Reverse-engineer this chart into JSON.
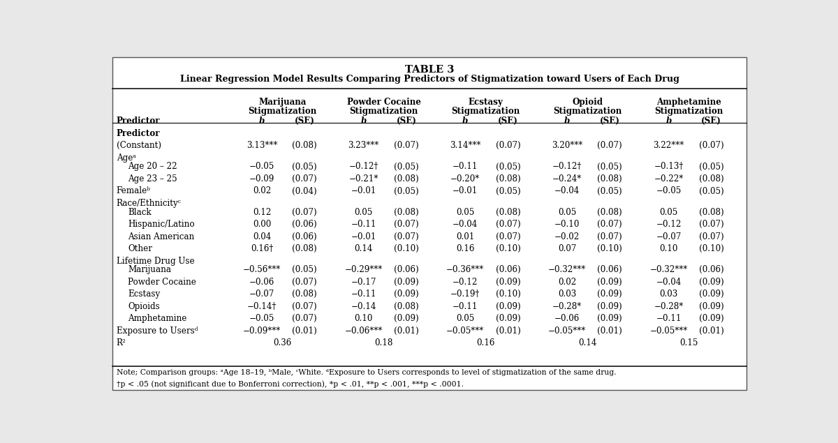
{
  "title_line1": "TABLE 3",
  "title_line2": "Linear Regression Model Results Comparing Predictors of Stigmatization toward Users of Each Drug",
  "col_headers": [
    [
      "Marijuana",
      "Stigmatization"
    ],
    [
      "Powder Cocaine",
      "Stigmatization"
    ],
    [
      "Ecstasy",
      "Stigmatization"
    ],
    [
      "Opioid",
      "Stigmatization"
    ],
    [
      "Amphetamine",
      "Stigmatization"
    ]
  ],
  "rows": [
    {
      "label": "Predictor",
      "indent": 0,
      "bold": true,
      "header": true,
      "vals": [
        "b",
        "(SE)",
        "b",
        "(SE)",
        "b",
        "(SE)",
        "b",
        "(SE)",
        "b",
        "(SE)"
      ]
    },
    {
      "label": "(Constant)",
      "indent": 0,
      "bold": false,
      "header": false,
      "vals": [
        "3.13***",
        "(0.08)",
        "3.23***",
        "(0.07)",
        "3.14***",
        "(0.07)",
        "3.20***",
        "(0.07)",
        "3.22***",
        "(0.07)"
      ]
    },
    {
      "label": "Ageᵃ",
      "indent": 0,
      "bold": false,
      "header": false,
      "section": true,
      "vals": [
        "",
        "",
        "",
        "",
        "",
        "",
        "",
        "",
        "",
        ""
      ]
    },
    {
      "label": "Age 20 – 22",
      "indent": 1,
      "bold": false,
      "header": false,
      "vals": [
        "−0.05",
        "(0.05)",
        "−0.12†",
        "(0.05)",
        "−0.11",
        "(0.05)",
        "−0.12†",
        "(0.05)",
        "−0.13†",
        "(0.05)"
      ]
    },
    {
      "label": "Age 23 – 25",
      "indent": 1,
      "bold": false,
      "header": false,
      "vals": [
        "−0.09",
        "(0.07)",
        "−0.21*",
        "(0.08)",
        "−0.20*",
        "(0.08)",
        "−0.24*",
        "(0.08)",
        "−0.22*",
        "(0.08)"
      ]
    },
    {
      "label": "Femaleᵇ",
      "indent": 0,
      "bold": false,
      "header": false,
      "vals": [
        "0.02",
        "(0.04)",
        "−0.01",
        "(0.05)",
        "−0.01",
        "(0.05)",
        "−0.04",
        "(0.05)",
        "−0.05",
        "(0.05)"
      ]
    },
    {
      "label": "Race/Ethnicityᶜ",
      "indent": 0,
      "bold": false,
      "header": false,
      "section": true,
      "vals": [
        "",
        "",
        "",
        "",
        "",
        "",
        "",
        "",
        "",
        ""
      ]
    },
    {
      "label": "Black",
      "indent": 1,
      "bold": false,
      "header": false,
      "vals": [
        "0.12",
        "(0.07)",
        "0.05",
        "(0.08)",
        "0.05",
        "(0.08)",
        "0.05",
        "(0.08)",
        "0.05",
        "(0.08)"
      ]
    },
    {
      "label": "Hispanic/Latino",
      "indent": 1,
      "bold": false,
      "header": false,
      "vals": [
        "0.00",
        "(0.06)",
        "−0.11",
        "(0.07)",
        "−0.04",
        "(0.07)",
        "−0.10",
        "(0.07)",
        "−0.12",
        "(0.07)"
      ]
    },
    {
      "label": "Asian American",
      "indent": 1,
      "bold": false,
      "header": false,
      "vals": [
        "0.04",
        "(0.06)",
        "−0.01",
        "(0.07)",
        "0.01",
        "(0.07)",
        "−0.02",
        "(0.07)",
        "−0.07",
        "(0.07)"
      ]
    },
    {
      "label": "Other",
      "indent": 1,
      "bold": false,
      "header": false,
      "vals": [
        "0.16†",
        "(0.08)",
        "0.14",
        "(0.10)",
        "0.16",
        "(0.10)",
        "0.07",
        "(0.10)",
        "0.10",
        "(0.10)"
      ]
    },
    {
      "label": "Lifetime Drug Use",
      "indent": 0,
      "bold": false,
      "header": false,
      "section": true,
      "vals": [
        "",
        "",
        "",
        "",
        "",
        "",
        "",
        "",
        "",
        ""
      ]
    },
    {
      "label": "Marijuana",
      "indent": 1,
      "bold": false,
      "header": false,
      "vals": [
        "−0.56***",
        "(0.05)",
        "−0.29***",
        "(0.06)",
        "−0.36***",
        "(0.06)",
        "−0.32***",
        "(0.06)",
        "−0.32***",
        "(0.06)"
      ]
    },
    {
      "label": "Powder Cocaine",
      "indent": 1,
      "bold": false,
      "header": false,
      "vals": [
        "−0.06",
        "(0.07)",
        "−0.17",
        "(0.09)",
        "−0.12",
        "(0.09)",
        "0.02",
        "(0.09)",
        "−0.04",
        "(0.09)"
      ]
    },
    {
      "label": "Ecstasy",
      "indent": 1,
      "bold": false,
      "header": false,
      "vals": [
        "−0.07",
        "(0.08)",
        "−0.11",
        "(0.09)",
        "−0.19†",
        "(0.10)",
        "0.03",
        "(0.09)",
        "0.03",
        "(0.09)"
      ]
    },
    {
      "label": "Opioids",
      "indent": 1,
      "bold": false,
      "header": false,
      "vals": [
        "−0.14†",
        "(0.07)",
        "−0.14",
        "(0.08)",
        "−0.11",
        "(0.09)",
        "−0.28*",
        "(0.09)",
        "−0.28*",
        "(0.09)"
      ]
    },
    {
      "label": "Amphetamine",
      "indent": 1,
      "bold": false,
      "header": false,
      "vals": [
        "−0.05",
        "(0.07)",
        "0.10",
        "(0.09)",
        "0.05",
        "(0.09)",
        "−0.06",
        "(0.09)",
        "−0.11",
        "(0.09)"
      ]
    },
    {
      "label": "Exposure to Usersᵈ",
      "indent": 0,
      "bold": false,
      "header": false,
      "vals": [
        "−0.09***",
        "(0.01)",
        "−0.06***",
        "(0.01)",
        "−0.05***",
        "(0.01)",
        "−0.05***",
        "(0.01)",
        "−0.05***",
        "(0.01)"
      ]
    },
    {
      "label": "R²",
      "indent": 0,
      "bold": false,
      "header": false,
      "r2": true,
      "vals": [
        "",
        "0.36",
        "",
        "0.18",
        "",
        "0.16",
        "",
        "0.14",
        "",
        "0.15"
      ]
    }
  ],
  "note_line1": "Note; Comparison groups: ᵃAge 18–19, ᵇMale, ᶜWhite. ᵈExposure to Users corresponds to level of stigmatization of the same drug.",
  "note_line2": "†p < .05 (not significant due to Bonferroni correction), *p < .01, **p < .001, ***p < .0001.",
  "outer_bg": "#e8e8e8",
  "inner_bg": "#ffffff",
  "text_color": "#000000"
}
